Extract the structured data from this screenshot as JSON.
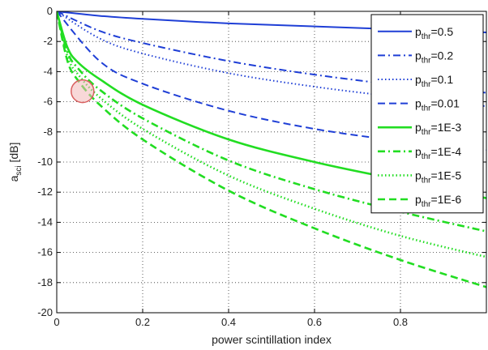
{
  "chart_data": {
    "type": "line",
    "xlabel": "power scintillation index",
    "ylabel": "a",
    "ylabel_sub": "sci",
    "ylabel_unit": " [dB]",
    "xlim": [
      0,
      1
    ],
    "ylim": [
      -20,
      0
    ],
    "xticks": [
      0,
      0.2,
      0.4,
      0.6,
      0.8
    ],
    "xtick_labels": [
      "0",
      "0.2",
      "0.4",
      "0.6",
      "0.8"
    ],
    "yticks": [
      0,
      -2,
      -4,
      -6,
      -8,
      -10,
      -12,
      -14,
      -16,
      -18,
      -20
    ],
    "ytick_labels": [
      "0",
      "-2",
      "-4",
      "-6",
      "-8",
      "-10",
      "-12",
      "-14",
      "-16",
      "-18",
      "-20"
    ],
    "grid": true,
    "legend_position": "top-right",
    "series": [
      {
        "name": "p",
        "sub": "thr",
        "value": "=0.5",
        "color": "#1f3fd6",
        "dash": "solid",
        "x": [
          0,
          0.1,
          0.2,
          0.4,
          0.6,
          0.8,
          1.0
        ],
        "y": [
          0,
          -0.3,
          -0.5,
          -0.8,
          -1.0,
          -1.2,
          -1.4
        ]
      },
      {
        "name": "p",
        "sub": "thr",
        "value": "=0.2",
        "color": "#1f3fd6",
        "dash": "dashdot",
        "x": [
          0,
          0.1,
          0.2,
          0.4,
          0.6,
          0.8,
          1.0
        ],
        "y": [
          0,
          -1.3,
          -2.1,
          -3.3,
          -4.2,
          -4.9,
          -5.4
        ]
      },
      {
        "name": "p",
        "sub": "thr",
        "value": "=0.1",
        "color": "#1f3fd6",
        "dash": "dotted",
        "x": [
          0,
          0.1,
          0.2,
          0.4,
          0.6,
          0.8,
          1.0
        ],
        "y": [
          0,
          -1.8,
          -2.8,
          -4.1,
          -5.0,
          -5.7,
          -6.3
        ]
      },
      {
        "name": "p",
        "sub": "thr",
        "value": "=0.01",
        "color": "#1f3fd6",
        "dash": "dashed",
        "x": [
          0,
          0.1,
          0.2,
          0.4,
          0.6,
          0.8,
          1.0
        ],
        "y": [
          0,
          -3.3,
          -4.8,
          -6.6,
          -7.8,
          -8.6,
          -9.2
        ]
      },
      {
        "name": "p",
        "sub": "thr",
        "value": "=1E-3",
        "color": "#22dd22",
        "dash": "solid",
        "x": [
          0,
          0.025,
          0.05,
          0.1,
          0.2,
          0.4,
          0.6,
          0.8,
          1.0
        ],
        "y": [
          0,
          -2.4,
          -3.4,
          -4.5,
          -6.2,
          -8.5,
          -10.0,
          -11.2,
          -12.4
        ]
      },
      {
        "name": "p",
        "sub": "thr",
        "value": "=1E-4",
        "color": "#22dd22",
        "dash": "dashdot",
        "x": [
          0,
          0.025,
          0.05,
          0.1,
          0.2,
          0.4,
          0.6,
          0.8,
          1.0
        ],
        "y": [
          0,
          -2.7,
          -3.8,
          -5.2,
          -7.1,
          -9.9,
          -11.8,
          -13.3,
          -14.6
        ]
      },
      {
        "name": "p",
        "sub": "thr",
        "value": "=1E-5",
        "color": "#22dd22",
        "dash": "dotted",
        "x": [
          0,
          0.025,
          0.05,
          0.1,
          0.2,
          0.4,
          0.6,
          0.8,
          1.0
        ],
        "y": [
          0,
          -3.0,
          -4.2,
          -5.7,
          -7.8,
          -10.9,
          -13.1,
          -14.9,
          -16.3
        ]
      },
      {
        "name": "p",
        "sub": "thr",
        "value": "=1E-6",
        "color": "#22dd22",
        "dash": "dashed",
        "x": [
          0,
          0.025,
          0.05,
          0.1,
          0.2,
          0.4,
          0.6,
          0.8,
          1.0
        ],
        "y": [
          0,
          -3.3,
          -4.6,
          -6.2,
          -8.5,
          -11.9,
          -14.4,
          -16.5,
          -18.3
        ]
      }
    ],
    "annotation": {
      "type": "circle",
      "x": 0.06,
      "y": -5.3,
      "color": "#d96060",
      "fill": "#f2b8b8"
    }
  }
}
